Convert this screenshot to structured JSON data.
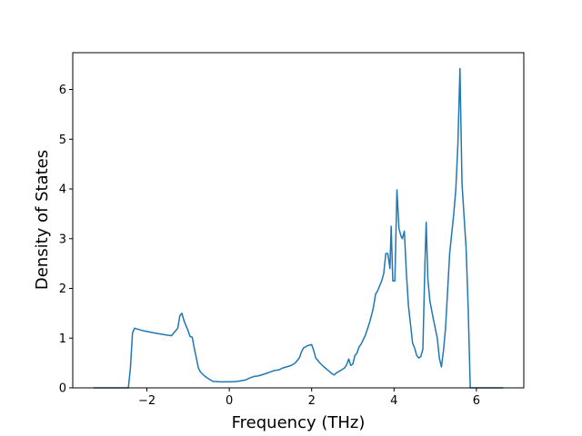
{
  "chart_data": {
    "type": "line",
    "x_label": "Frequency (THz)",
    "y_label": "Density of States",
    "xlim": [
      -3.8,
      7.15
    ],
    "ylim": [
      0,
      6.74
    ],
    "xticks": [
      {
        "value": -2,
        "label": "−2"
      },
      0,
      2,
      4,
      6
    ],
    "yticks": [
      0,
      1,
      2,
      3,
      4,
      5,
      6
    ],
    "grid": false,
    "series": [
      {
        "color": "#1f77b4",
        "x": [
          -3.3,
          -2.45,
          -2.4,
          -2.35,
          -2.3,
          -2.1,
          -1.8,
          -1.5,
          -1.4,
          -1.3,
          -1.25,
          -1.2,
          -1.15,
          -1.1,
          -1.0,
          -0.95,
          -0.9,
          -0.85,
          -0.8,
          -0.75,
          -0.7,
          -0.6,
          -0.5,
          -0.4,
          -0.2,
          0,
          0.2,
          0.4,
          0.5,
          0.6,
          0.7,
          0.9,
          1.0,
          1.1,
          1.2,
          1.3,
          1.5,
          1.6,
          1.7,
          1.75,
          1.8,
          1.9,
          2.0,
          2.05,
          2.1,
          2.2,
          2.3,
          2.4,
          2.5,
          2.55,
          2.6,
          2.7,
          2.8,
          2.85,
          2.9,
          2.95,
          3.0,
          3.05,
          3.1,
          3.15,
          3.2,
          3.3,
          3.4,
          3.45,
          3.5,
          3.55,
          3.6,
          3.7,
          3.75,
          3.8,
          3.85,
          3.9,
          3.93,
          3.97,
          4.02,
          4.07,
          4.12,
          4.17,
          4.2,
          4.25,
          4.3,
          4.35,
          4.45,
          4.5,
          4.55,
          4.6,
          4.65,
          4.7,
          4.75,
          4.78,
          4.82,
          4.87,
          4.95,
          5.05,
          5.1,
          5.15,
          5.2,
          5.25,
          5.35,
          5.45,
          5.5,
          5.55,
          5.6,
          5.65,
          5.75,
          5.8,
          5.85,
          6.65
        ],
        "values": [
          0,
          0,
          0.4,
          1.1,
          1.2,
          1.15,
          1.1,
          1.06,
          1.05,
          1.15,
          1.2,
          1.45,
          1.5,
          1.35,
          1.15,
          1.03,
          1.02,
          0.8,
          0.6,
          0.4,
          0.32,
          0.24,
          0.18,
          0.13,
          0.12,
          0.12,
          0.13,
          0.16,
          0.2,
          0.23,
          0.24,
          0.29,
          0.32,
          0.35,
          0.36,
          0.4,
          0.45,
          0.5,
          0.6,
          0.72,
          0.8,
          0.85,
          0.87,
          0.75,
          0.6,
          0.5,
          0.42,
          0.35,
          0.28,
          0.26,
          0.3,
          0.35,
          0.4,
          0.47,
          0.58,
          0.45,
          0.48,
          0.65,
          0.7,
          0.82,
          0.88,
          1.05,
          1.3,
          1.45,
          1.62,
          1.88,
          1.95,
          2.15,
          2.3,
          2.7,
          2.7,
          2.4,
          3.25,
          2.15,
          2.15,
          3.98,
          3.2,
          3.05,
          3.0,
          3.15,
          2.3,
          1.65,
          0.9,
          0.8,
          0.65,
          0.6,
          0.63,
          0.78,
          2.5,
          3.33,
          2.2,
          1.75,
          1.4,
          1.0,
          0.6,
          0.42,
          0.75,
          1.2,
          2.7,
          3.5,
          4.0,
          4.9,
          6.42,
          4.1,
          2.8,
          1.6,
          0,
          0
        ]
      }
    ]
  }
}
